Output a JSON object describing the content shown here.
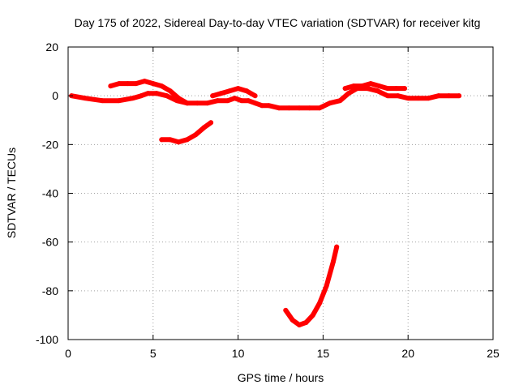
{
  "chart_data": {
    "type": "scatter",
    "title": "Day 175 of 2022, Sidereal Day-to-day VTEC variation (SDTVAR) for receiver kitg",
    "xlabel": "GPS time / hours",
    "ylabel": "SDTVAR / TECUs",
    "xlim": [
      0,
      25
    ],
    "ylim": [
      -100,
      20
    ],
    "xticks": [
      "0",
      "5",
      "10",
      "15",
      "20",
      "25"
    ],
    "yticks": [
      "20",
      "0",
      "-20",
      "-40",
      "-60",
      "-80",
      "-100"
    ],
    "grid": true,
    "color": "#ff0000",
    "series": [
      {
        "name": "arc-1",
        "x": [
          0.2,
          1.0,
          2.0,
          3.0,
          3.8,
          4.3,
          4.7,
          5.2,
          5.8,
          6.4,
          7.0,
          7.6,
          8.2,
          8.8,
          9.4,
          9.8,
          10.2,
          10.6,
          11.0,
          11.4,
          11.8,
          12.4,
          13.0,
          13.6,
          14.2,
          14.8,
          15.4,
          16.0,
          16.5,
          17.0,
          17.6,
          18.2,
          18.8,
          19.4,
          20.0,
          20.6,
          21.2,
          21.8,
          22.4,
          23.0
        ],
        "y": [
          0,
          -1,
          -2,
          -2,
          -1,
          0,
          1,
          1,
          0,
          -2,
          -3,
          -3,
          -3,
          -2,
          -2,
          -1,
          -2,
          -2,
          -3,
          -4,
          -4,
          -5,
          -5,
          -5,
          -5,
          -5,
          -3,
          -2,
          1,
          3,
          3,
          2,
          0,
          0,
          -1,
          -1,
          -1,
          0,
          0,
          0
        ]
      },
      {
        "name": "arc-2",
        "x": [
          2.5,
          3.0,
          3.5,
          4.0,
          4.5,
          5.0,
          5.5,
          6.0,
          6.5,
          7.0
        ],
        "y": [
          4,
          5,
          5,
          5,
          6,
          5,
          4,
          2,
          -1,
          -3
        ]
      },
      {
        "name": "arc-3",
        "x": [
          8.5,
          9.0,
          9.5,
          10.0,
          10.5,
          11.0
        ],
        "y": [
          0,
          1,
          2,
          3,
          2,
          0
        ]
      },
      {
        "name": "arc-4",
        "x": [
          16.3,
          16.8,
          17.3,
          17.8,
          18.3,
          18.8,
          19.3,
          19.8
        ],
        "y": [
          3,
          4,
          4,
          5,
          4,
          3,
          3,
          3
        ]
      },
      {
        "name": "arc-5",
        "x": [
          5.5,
          6.0,
          6.5,
          7.0,
          7.5,
          8.0,
          8.4
        ],
        "y": [
          -18,
          -18,
          -19,
          -18,
          -16,
          -13,
          -11
        ]
      },
      {
        "name": "arc-6",
        "x": [
          12.8,
          13.2,
          13.6,
          14.0,
          14.4,
          14.8,
          15.2,
          15.6,
          15.8
        ],
        "y": [
          -88,
          -92,
          -94,
          -93,
          -90,
          -85,
          -78,
          -68,
          -62
        ]
      }
    ]
  }
}
